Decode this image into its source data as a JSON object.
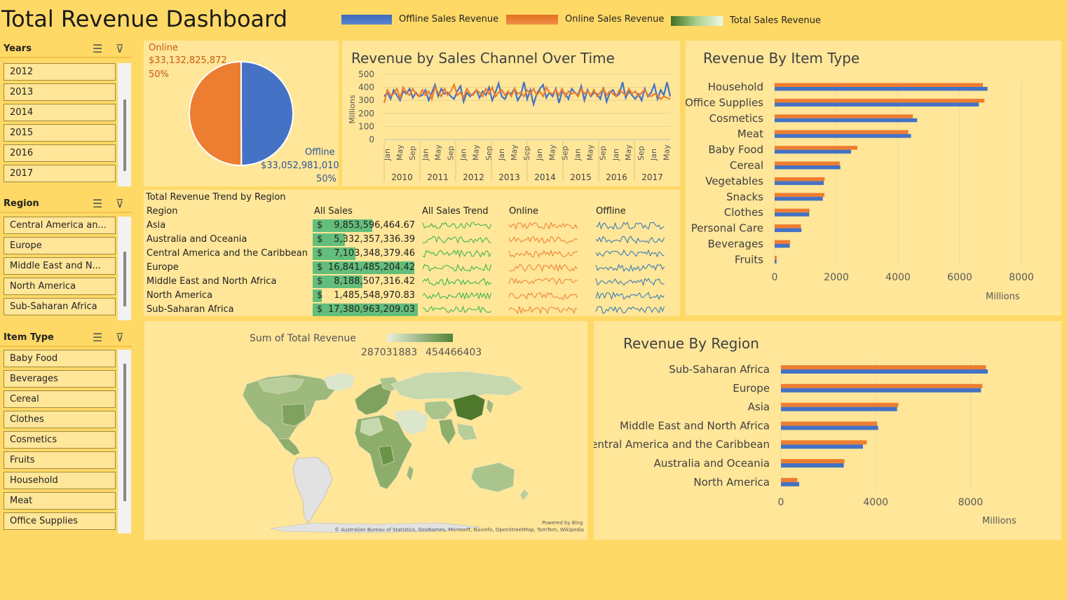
{
  "header": {
    "title": "Total Revenue Dashboard",
    "legend": [
      {
        "label": "Offline Sales Revenue",
        "color": "#4472C4"
      },
      {
        "label": "Online Sales Revenue",
        "color": "#ED7D31"
      },
      {
        "label": "Total Sales Revenue",
        "color": "#548235"
      }
    ]
  },
  "slicers": {
    "years": {
      "title": "Years",
      "items": [
        "2012",
        "2013",
        "2014",
        "2015",
        "2016",
        "2017"
      ]
    },
    "region": {
      "title": "Region",
      "items": [
        "Central America an...",
        "Europe",
        "Middle East and N...",
        "North America",
        "Sub-Saharan Africa"
      ]
    },
    "item_type": {
      "title": "Item Type",
      "items": [
        "Baby Food",
        "Beverages",
        "Cereal",
        "Clothes",
        "Cosmetics",
        "Fruits",
        "Household",
        "Meat",
        "Office Supplies"
      ]
    }
  },
  "pie": {
    "online_label": "Online",
    "online_value": "$33,132,825,872",
    "online_pct": "50%",
    "offline_label": "Offline",
    "offline_value": "$33,052,981,010",
    "offline_pct": "50%"
  },
  "region_table": {
    "title": "Total Revenue Trend by Region",
    "headers": [
      "Region",
      "All Sales",
      "All Sales Trend",
      "Online",
      "Offline"
    ],
    "rows": [
      {
        "region": "Asia",
        "sales": "9,853,596,464.67",
        "value": 9853596464.67
      },
      {
        "region": "Australia and Oceania",
        "sales": "5,332,357,336.39",
        "value": 5332357336.39
      },
      {
        "region": "Central America and the Caribbean",
        "sales": "7,103,348,379.46",
        "value": 7103348379.46
      },
      {
        "region": "Europe",
        "sales": "16,841,485,204.42",
        "value": 16841485204.42
      },
      {
        "region": "Middle East and North Africa",
        "sales": "8,188,507,316.42",
        "value": 8188507316.42
      },
      {
        "region": "North America",
        "sales": "1,485,548,970.83",
        "value": 1485548970.83
      },
      {
        "region": "Sub-Saharan Africa",
        "sales": "17,380,963,209.03",
        "value": 17380963209.03
      }
    ],
    "currency": "$"
  },
  "map": {
    "legend_title": "Sum of  Total Revenue",
    "min_label": "287031883",
    "max_label": "454466403",
    "powered": "Powered by Bing",
    "credits": "© Australian Bureau of Statistics, GeoNames, Microsoft, Navinfo, OpenStreetMap, TomTom, Wikipedia"
  },
  "chart_data": [
    {
      "type": "pie",
      "categories": [
        "Offline",
        "Online"
      ],
      "values": [
        33052981010,
        33132825872
      ],
      "colors": [
        "#4472C4",
        "#ED7D31"
      ]
    },
    {
      "type": "line",
      "title": "Revenue by Sales Channel Over Time",
      "ylabel": "Millions",
      "ylim": [
        0,
        500
      ],
      "yticks": [
        0,
        100,
        200,
        300,
        400,
        500
      ],
      "month_ticks": [
        "Jan",
        "May",
        "Sep",
        "Jan",
        "May",
        "Sep",
        "Jan",
        "May",
        "Sep",
        "Jan",
        "May",
        "Sep",
        "Jan",
        "May",
        "Sep",
        "Jan",
        "May",
        "Sep",
        "Jan",
        "May",
        "Sep",
        "Jan",
        "May"
      ],
      "years": [
        "2010",
        "2011",
        "2012",
        "2013",
        "2014",
        "2015",
        "2016",
        "2017"
      ],
      "series": [
        {
          "name": "Offline Sales Revenue",
          "color": "#4472C4",
          "values": [
            330,
            360,
            310,
            380,
            340,
            300,
            370,
            350,
            390,
            320,
            360,
            330,
            340,
            380,
            300,
            360,
            420,
            330,
            390,
            350,
            360,
            330,
            310,
            370,
            410,
            290,
            360,
            330,
            350,
            380,
            320,
            370,
            340,
            400,
            300,
            360,
            430,
            330,
            310,
            360,
            350,
            390,
            300,
            340,
            440,
            310,
            380,
            270,
            350,
            390,
            420,
            320,
            360,
            330,
            390,
            280,
            370,
            350,
            310,
            390,
            360,
            340,
            410,
            300,
            380,
            330,
            360,
            350,
            310,
            400,
            290,
            360,
            380,
            330,
            350,
            440,
            320,
            370,
            340,
            310,
            350,
            300,
            390,
            330,
            360,
            420,
            310,
            380,
            340,
            440,
            330
          ]
        },
        {
          "name": "Online Sales Revenue",
          "color": "#ED7D31",
          "values": [
            280,
            380,
            340,
            350,
            390,
            320,
            400,
            360,
            340,
            390,
            350,
            330,
            380,
            340,
            370,
            310,
            400,
            360,
            330,
            390,
            340,
            370,
            420,
            340,
            360,
            320,
            390,
            350,
            340,
            380,
            360,
            330,
            390,
            350,
            400,
            330,
            360,
            380,
            340,
            370,
            330,
            390,
            350,
            360,
            330,
            380,
            350,
            390,
            340,
            370,
            330,
            400,
            360,
            350,
            380,
            340,
            390,
            330,
            370,
            350,
            360,
            330,
            390,
            350,
            370,
            340,
            380,
            330,
            360,
            390,
            340,
            370,
            350,
            330,
            380,
            360,
            340,
            390,
            350,
            370,
            330,
            360,
            380,
            340,
            330,
            350,
            340,
            310,
            330,
            320,
            310
          ]
        }
      ]
    },
    {
      "type": "bar",
      "title": "Revenue By Item Type",
      "xlabel": "Millions",
      "xlim": [
        0,
        8000
      ],
      "xticks": [
        0,
        2000,
        4000,
        6000,
        8000
      ],
      "categories": [
        "Household",
        "Office Supplies",
        "Cosmetics",
        "Meat",
        "Baby Food",
        "Cereal",
        "Vegetables",
        "Snacks",
        "Clothes",
        "Personal Care",
        "Beverages",
        "Fruits"
      ],
      "series": [
        {
          "name": "Online Sales Revenue",
          "color": "#ED7D31",
          "values": [
            6750,
            6800,
            4480,
            4330,
            2680,
            2110,
            1620,
            1610,
            1130,
            850,
            500,
            65
          ]
        },
        {
          "name": "Offline Sales Revenue",
          "color": "#4472C4",
          "values": [
            6900,
            6620,
            4620,
            4420,
            2480,
            2130,
            1590,
            1560,
            1120,
            870,
            490,
            60
          ]
        }
      ]
    },
    {
      "type": "bar",
      "title": "Revenue By Region",
      "xlabel": "Millions",
      "xlim": [
        0,
        10000
      ],
      "xticks": [
        0,
        4000,
        8000
      ],
      "categories": [
        "Sub-Saharan Africa",
        "Europe",
        "Asia",
        "Middle East and North Africa",
        "Central America and the Caribbean",
        "Australia and Oceania",
        "North America"
      ],
      "series": [
        {
          "name": "Online Sales Revenue",
          "color": "#ED7D31",
          "values": [
            8650,
            8500,
            4950,
            4060,
            3620,
            2680,
            690
          ]
        },
        {
          "name": "Offline Sales Revenue",
          "color": "#4472C4",
          "values": [
            8730,
            8440,
            4900,
            4100,
            3460,
            2650,
            770
          ]
        }
      ]
    }
  ]
}
